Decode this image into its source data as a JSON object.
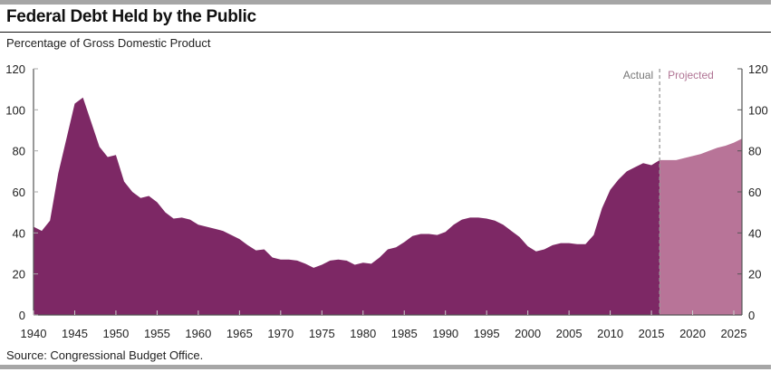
{
  "header": {
    "title": "Federal Debt Held by the Public",
    "subtitle": "Percentage of Gross Domestic Product"
  },
  "footer": {
    "source": "Source: Congressional Budget Office."
  },
  "colors": {
    "actual": "#7d2865",
    "projected": "#b87498",
    "divider": "#999999"
  },
  "chart_data": {
    "type": "area",
    "title": "Federal Debt Held by the Public",
    "ylabel": "Percentage of Gross Domestic Product",
    "xlabel": "",
    "xlim": [
      1940,
      2026
    ],
    "ylim": [
      0,
      120
    ],
    "yticks": [
      0,
      20,
      40,
      60,
      80,
      100,
      120
    ],
    "xticks": [
      1940,
      1945,
      1950,
      1955,
      1960,
      1965,
      1970,
      1975,
      1980,
      1985,
      1990,
      1995,
      2000,
      2005,
      2010,
      2015,
      2020,
      2025
    ],
    "divider_year": 2016,
    "annotations": {
      "actual": "Actual",
      "projected": "Projected"
    },
    "series": [
      {
        "name": "Actual",
        "x": [
          1940,
          1941,
          1942,
          1943,
          1944,
          1945,
          1946,
          1947,
          1948,
          1949,
          1950,
          1951,
          1952,
          1953,
          1954,
          1955,
          1956,
          1957,
          1958,
          1959,
          1960,
          1961,
          1962,
          1963,
          1964,
          1965,
          1966,
          1967,
          1968,
          1969,
          1970,
          1971,
          1972,
          1973,
          1974,
          1975,
          1976,
          1977,
          1978,
          1979,
          1980,
          1981,
          1982,
          1983,
          1984,
          1985,
          1986,
          1987,
          1988,
          1989,
          1990,
          1991,
          1992,
          1993,
          1994,
          1995,
          1996,
          1997,
          1998,
          1999,
          2000,
          2001,
          2002,
          2003,
          2004,
          2005,
          2006,
          2007,
          2008,
          2009,
          2010,
          2011,
          2012,
          2013,
          2014,
          2015,
          2016
        ],
        "values": [
          43,
          41,
          46,
          69,
          86,
          103,
          106,
          94,
          82,
          77,
          78,
          65,
          60,
          57,
          58,
          55,
          50,
          47,
          47.5,
          46.5,
          44,
          43,
          42,
          41,
          39,
          37,
          34,
          31.5,
          32,
          28,
          27,
          27,
          26.5,
          25,
          23,
          24.5,
          26.5,
          27,
          26.5,
          24.5,
          25.5,
          25,
          28,
          32,
          33,
          35.5,
          38.5,
          39.5,
          39.5,
          39,
          40.5,
          44,
          46.5,
          47.5,
          47.5,
          47,
          46,
          44,
          41,
          38,
          33.5,
          31,
          32,
          34,
          35,
          35,
          34.5,
          34.5,
          39,
          52,
          61,
          66,
          70,
          72,
          74,
          73,
          75.5
        ]
      },
      {
        "name": "Projected",
        "x": [
          2016,
          2017,
          2018,
          2019,
          2020,
          2021,
          2022,
          2023,
          2024,
          2025,
          2026
        ],
        "values": [
          75.5,
          75.5,
          75.5,
          76.5,
          77.5,
          78.5,
          80,
          81.5,
          82.5,
          84,
          86
        ]
      }
    ]
  }
}
